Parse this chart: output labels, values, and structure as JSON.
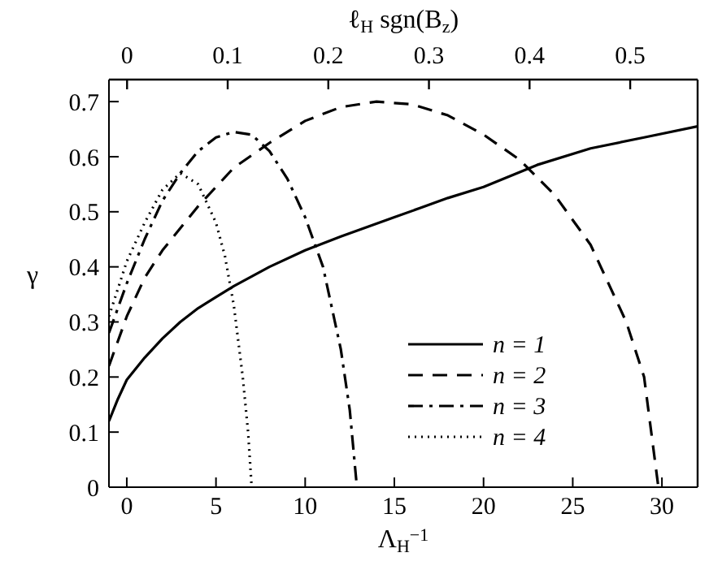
{
  "chart_data": {
    "type": "line",
    "xlabel": "Λ$_{H}$$^{−1}$",
    "x2label": "ℓ$_{H}$ sgn(B$_{z}$)",
    "ylabel": "γ",
    "xlim": [
      -1,
      32
    ],
    "xticks": [
      0,
      5,
      10,
      15,
      20,
      25,
      30
    ],
    "x2lim": [
      -0.018,
      0.567
    ],
    "x2ticks": [
      0,
      0.1,
      0.2,
      0.3,
      0.4,
      0.5
    ],
    "ylim": [
      0,
      0.74
    ],
    "yticks": [
      0,
      0.1,
      0.2,
      0.3,
      0.4,
      0.5,
      0.6,
      0.7
    ],
    "grid": false,
    "legend": "bottom right",
    "marker": "none",
    "series": [
      {
        "name": "n = 1",
        "color": "#000000",
        "line_style": "solid",
        "x": [
          -1,
          -0.5,
          0,
          1,
          2,
          3,
          4,
          5,
          6,
          8,
          10,
          12,
          15,
          18,
          20,
          23,
          26,
          29,
          32
        ],
        "values": [
          0.12,
          0.16,
          0.195,
          0.235,
          0.27,
          0.3,
          0.325,
          0.345,
          0.365,
          0.4,
          0.43,
          0.455,
          0.49,
          0.525,
          0.545,
          0.585,
          0.615,
          0.635,
          0.655
        ]
      },
      {
        "name": "n = 2",
        "color": "#000000",
        "line_style": "dashed",
        "x": [
          -1,
          0,
          1,
          2,
          4,
          6,
          8,
          10,
          12,
          14,
          16,
          18,
          20,
          22,
          24,
          26,
          28,
          29,
          29.8
        ],
        "values": [
          0.22,
          0.31,
          0.38,
          0.43,
          0.51,
          0.58,
          0.625,
          0.665,
          0.69,
          0.7,
          0.695,
          0.675,
          0.64,
          0.595,
          0.53,
          0.44,
          0.3,
          0.2,
          0
        ]
      },
      {
        "name": "n = 3",
        "color": "#000000",
        "line_style": "dashdot",
        "x": [
          -1,
          0,
          1,
          2,
          3,
          4,
          5,
          6,
          7,
          8,
          9,
          10,
          11,
          12,
          12.5,
          12.9
        ],
        "values": [
          0.28,
          0.37,
          0.45,
          0.52,
          0.57,
          0.61,
          0.635,
          0.645,
          0.64,
          0.61,
          0.56,
          0.49,
          0.4,
          0.25,
          0.14,
          0
        ]
      },
      {
        "name": "n = 4",
        "color": "#000000",
        "line_style": "dotted",
        "x": [
          -1,
          0,
          1,
          2,
          3,
          4,
          5,
          5.5,
          6,
          6.5,
          6.8,
          7
        ],
        "values": [
          0.31,
          0.41,
          0.48,
          0.54,
          0.57,
          0.55,
          0.48,
          0.42,
          0.33,
          0.2,
          0.1,
          0
        ]
      }
    ]
  }
}
